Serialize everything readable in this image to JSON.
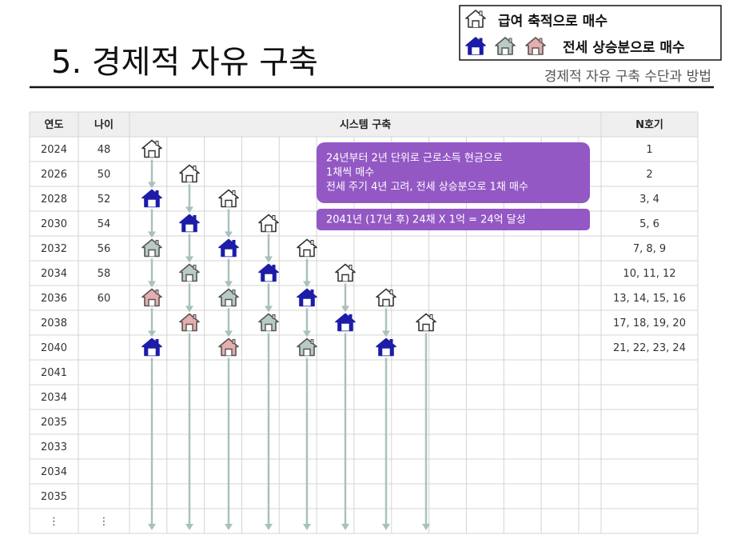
{
  "title": "5. 경제적 자유 구축",
  "subtitle": "경제적 자유 구축 수단과 방법",
  "legend": {
    "items": [
      "급여 축적으로 매수",
      "전세 상승분으로 매수"
    ]
  },
  "table": {
    "headers": [
      "연도",
      "나이",
      "시스템 구축",
      "N호기"
    ],
    "rows": [
      {
        "year": 2024,
        "age": 48,
        "n": "1"
      },
      {
        "year": 2026,
        "age": 50,
        "n": "2"
      },
      {
        "year": 2028,
        "age": 52,
        "n": "3, 4"
      },
      {
        "year": 2030,
        "age": 54,
        "n": "5, 6"
      },
      {
        "year": 2032,
        "age": 56,
        "n": "7, 8, 9"
      },
      {
        "year": 2034,
        "age": 58,
        "n": "10, 11, 12"
      },
      {
        "year": 2036,
        "age": 60,
        "n": "13, 14, 15, 16"
      },
      {
        "year": 2038,
        "n": "17, 18, 19, 20"
      },
      {
        "year": 2040,
        "n": "21, 22, 23, 24"
      },
      {
        "year": 2041
      },
      {
        "year": 2034
      },
      {
        "year": 2035
      },
      {
        "year": 2033
      },
      {
        "year": 2034
      },
      {
        "year": 2035
      },
      {
        "year": "⋮",
        "age": "⋮"
      }
    ]
  },
  "notes": [
    [
      "24년부터 2년 단위로 근로소득 현금으로",
      "1채씩 매수",
      "전세 주기 4년 고려, 전세 상승분으로 1채 매수"
    ],
    [
      "2041년 (17년  후) 24채 X 1억 = 24억 달성"
    ]
  ]
}
